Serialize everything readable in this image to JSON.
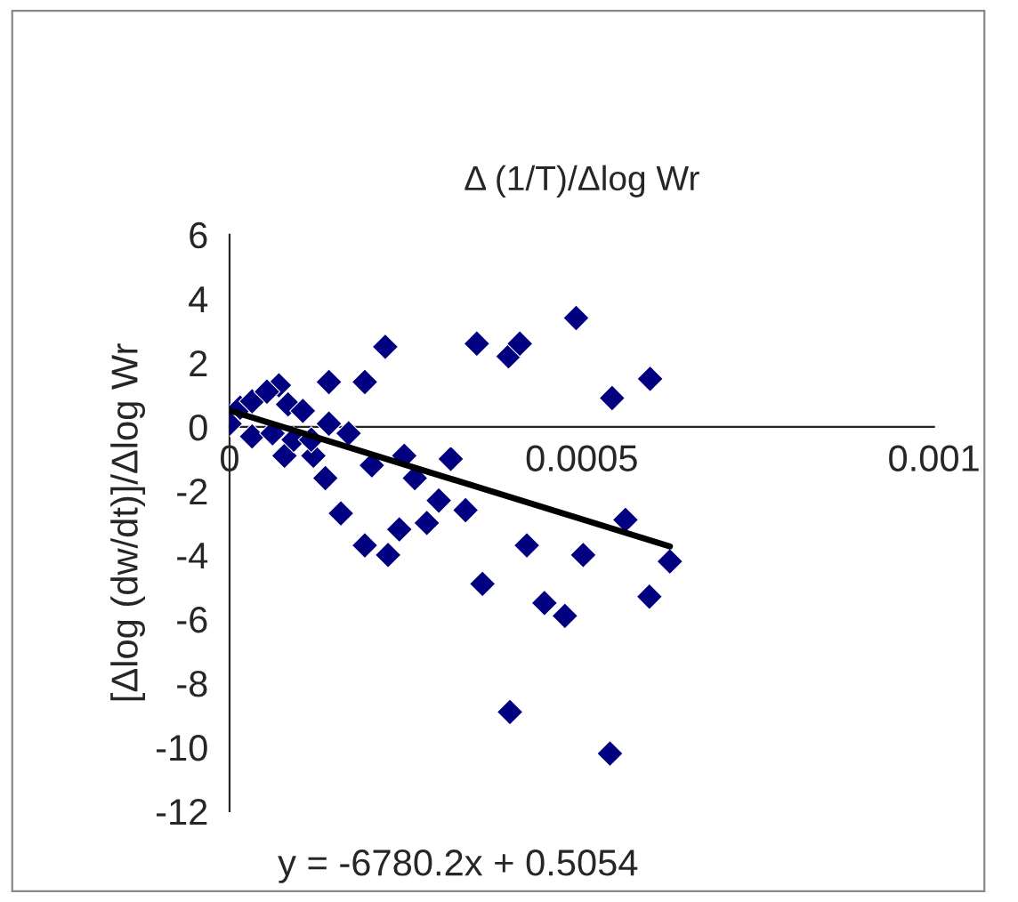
{
  "chart_data": {
    "type": "scatter",
    "title": "Δ (1/T)/Δlog Wr",
    "ylabel": "[Δlog (dw/dt)]/Δlog Wr",
    "annotations": [
      "y = -6780.2x + 0.5054"
    ],
    "xlim": [
      0,
      0.001
    ],
    "xticks": [
      0,
      0.0005,
      0.001
    ],
    "ylim": [
      -12,
      6
    ],
    "yticks": [
      -12,
      -10,
      -8,
      -6,
      -4,
      -2,
      0,
      2,
      4,
      6
    ],
    "grid": false,
    "series": [
      {
        "color": "#000080",
        "marker": "diamond",
        "x": [
          0.000492,
          0.000351,
          0.000396,
          0.000412,
          0.000543,
          0.000597,
          0.000314,
          0.000297,
          0.000335,
          0.00028,
          0.000562,
          0.000422,
          0.000502,
          7.8e-05,
          0.000119,
          0.000136,
          0.000158,
          0.000192,
          0.000202,
          0.000225,
          0.000241,
          0.000248,
          0.000263,
          0.000359,
          0.000398,
          0.000447,
          0.000476,
          0.00054,
          0.000596,
          0.000625,
          0.000221,
          0.000141,
          0.000192,
          7e-05,
          0.0,
          1.5e-05,
          3.2e-05,
          5.3e-05,
          8.3e-05,
          0.000104,
          3.2e-05,
          6.1e-05,
          9.1e-05,
          0.000116,
          0.000141,
          0.000169
        ],
        "values": [
          3.4,
          2.6,
          2.2,
          2.6,
          0.9,
          1.5,
          -1.0,
          -2.3,
          -2.6,
          -3.0,
          -2.9,
          -3.7,
          -4.0,
          -0.9,
          -0.9,
          -1.6,
          -2.7,
          -3.7,
          -1.2,
          -4.0,
          -3.2,
          -0.9,
          -1.6,
          -4.9,
          -8.9,
          -5.5,
          -5.9,
          -10.2,
          -5.3,
          -4.2,
          2.5,
          1.4,
          1.4,
          1.3,
          0.1,
          0.6,
          0.8,
          1.1,
          0.7,
          0.5,
          -0.3,
          -0.2,
          -0.4,
          -0.4,
          0.1,
          -0.2
        ]
      },
      {
        "type": "line",
        "color": "#000000",
        "x": [
          0,
          0.000625
        ],
        "values": [
          0.51,
          -3.73
        ]
      }
    ]
  }
}
